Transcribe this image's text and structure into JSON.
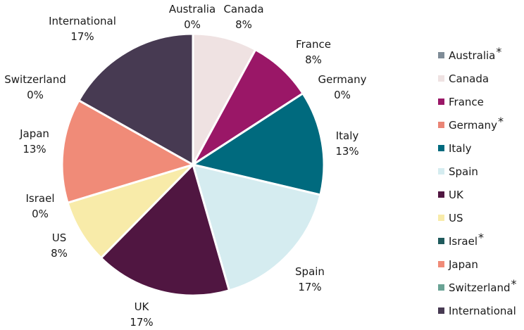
{
  "chart_data": {
    "type": "pie",
    "title": "",
    "slices": [
      {
        "name": "Australia",
        "value": 0,
        "label": "0%",
        "color": "#7f8c97",
        "asterisk": true
      },
      {
        "name": "Canada",
        "value": 8,
        "label": "8%",
        "color": "#efe2e2",
        "asterisk": false
      },
      {
        "name": "France",
        "value": 8,
        "label": "8%",
        "color": "#9a1767",
        "asterisk": false
      },
      {
        "name": "Germany",
        "value": 0,
        "label": "0%",
        "color": "#ea8576",
        "asterisk": true
      },
      {
        "name": "Italy",
        "value": 13,
        "label": "13%",
        "color": "#006a7e",
        "asterisk": false
      },
      {
        "name": "Spain",
        "value": 17,
        "label": "17%",
        "color": "#d5ecf0",
        "asterisk": false
      },
      {
        "name": "UK",
        "value": 17,
        "label": "17%",
        "color": "#501641",
        "asterisk": false
      },
      {
        "name": "US",
        "value": 8,
        "label": "8%",
        "color": "#f8eba9",
        "asterisk": false
      },
      {
        "name": "Israel",
        "value": 0,
        "label": "0%",
        "color": "#1f5a5c",
        "asterisk": true
      },
      {
        "name": "Japan",
        "value": 13,
        "label": "13%",
        "color": "#f08b78",
        "asterisk": false
      },
      {
        "name": "Switzerland",
        "value": 0,
        "label": "0%",
        "color": "#6aa395",
        "asterisk": true
      },
      {
        "name": "International",
        "value": 17,
        "label": "17%",
        "color": "#473a52",
        "asterisk": false
      }
    ],
    "legend": {
      "position": "right",
      "asterisk_symbol": "*"
    }
  }
}
